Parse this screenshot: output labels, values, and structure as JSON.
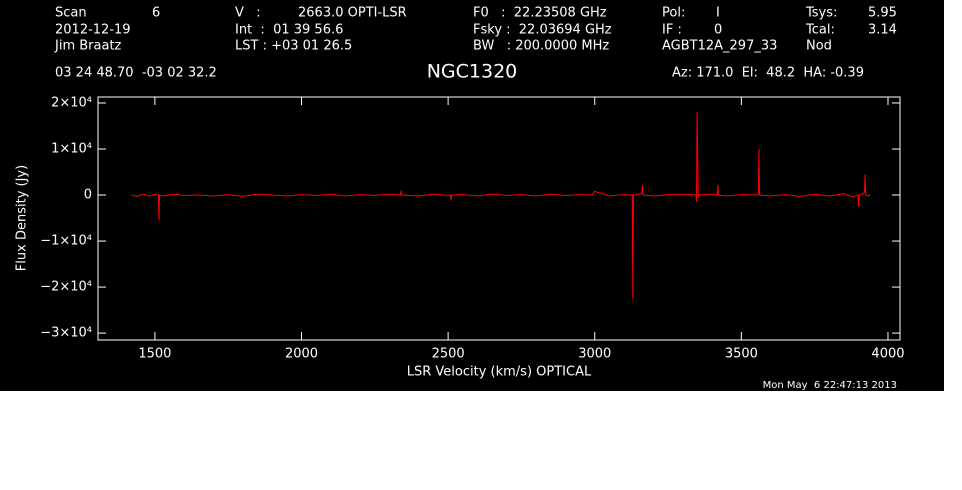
{
  "header": {
    "items": [
      "Scan",
      "6",
      "2012-12-19",
      "Jim Braatz",
      "V   :",
      "2663.0 OPTI-LSR",
      "Int  :  01 39 56.6",
      "LST : +03 01 26.5",
      "F0   :  22.23508 GHz",
      "Fsky :  22.03694 GHz",
      "BW   : 200.0000 MHz",
      "Pol:",
      "I",
      "IF :",
      "0",
      "AGBT12A_297_33",
      "Tsys:",
      "5.95",
      "Tcal:",
      "3.14",
      "Nod",
      "03 24 48.70  -03 02 32.2",
      "Az: 171.0  El:  48.2  HA: -0.39"
    ],
    "timestamp": "Mon May  6 22:47:13 2013"
  },
  "chart_data": {
    "type": "line",
    "title": "NGC1320",
    "x_label": "LSR Velocity (km/s) OPTICAL",
    "y_label": "Flux Density (Jy)",
    "xlim": [
      1306,
      4041
    ],
    "ylim": [
      -31500,
      21300
    ],
    "xticks": [
      1500,
      2000,
      2500,
      3000,
      3500,
      4000
    ],
    "yticks": [
      {
        "value": 20000,
        "label": "2×10⁴"
      },
      {
        "value": 10000,
        "label": "1×10⁴"
      },
      0,
      {
        "value": -10000,
        "label": "−1×10⁴"
      },
      {
        "value": -20000,
        "label": "−2×10⁴"
      },
      {
        "value": -30000,
        "label": "−3×10⁴"
      }
    ],
    "series": [
      {
        "name": "NGC1320",
        "color": "#ff0000",
        "x": [
          1420,
          1440,
          1460,
          1480,
          1500,
          1512,
          1514,
          1516,
          1530,
          1560,
          1600,
          1650,
          1700,
          1750,
          1800,
          1850,
          1900,
          1950,
          2000,
          2050,
          2100,
          2150,
          2200,
          2250,
          2300,
          2338,
          2340,
          2342,
          2400,
          2450,
          2500,
          2508,
          2510,
          2512,
          2550,
          2600,
          2650,
          2700,
          2750,
          2800,
          2850,
          2900,
          2950,
          2990,
          3000,
          3050,
          3100,
          3128,
          3130,
          3132,
          3160,
          3163,
          3165,
          3200,
          3250,
          3300,
          3345,
          3347,
          3349,
          3351,
          3353,
          3355,
          3400,
          3418,
          3420,
          3422,
          3450,
          3500,
          3555,
          3558,
          3560,
          3562,
          3600,
          3650,
          3700,
          3750,
          3800,
          3850,
          3880,
          3898,
          3900,
          3902,
          3915,
          3920,
          3922,
          3924,
          3930,
          3940
        ],
        "values": [
          0,
          -300,
          200,
          -200,
          100,
          0,
          -5500,
          0,
          -200,
          200,
          -100,
          0,
          -200,
          100,
          -300,
          200,
          0,
          -200,
          100,
          -100,
          200,
          -200,
          100,
          -100,
          200,
          0,
          1000,
          0,
          -200,
          200,
          -100,
          0,
          -1200,
          0,
          100,
          -200,
          200,
          -100,
          100,
          -200,
          200,
          -100,
          100,
          0,
          800,
          -200,
          100,
          0,
          -22500,
          0,
          300,
          2200,
          0,
          -200,
          100,
          200,
          0,
          -1500,
          18000,
          9000,
          -500,
          0,
          200,
          0,
          2200,
          0,
          -200,
          100,
          0,
          200,
          10000,
          0,
          -200,
          100,
          -300,
          200,
          -200,
          300,
          -400,
          0,
          -2500,
          0,
          300,
          600,
          4500,
          0,
          -200,
          0
        ]
      }
    ]
  }
}
